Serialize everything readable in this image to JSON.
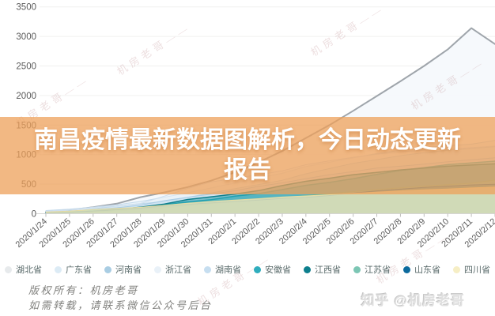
{
  "banner": {
    "title_line1": "南昌疫情最新数据图解析，今日动态更新",
    "title_line2": "报告",
    "background_color": "#ed9a5a"
  },
  "watermark_text": "机房老哥——",
  "footer": {
    "copyright_line1": "版权所有：机房老哥",
    "copyright_line2": "如需转载，请联系微信公众号后台",
    "site_watermark": "知乎 @机房老哥"
  },
  "chart_data": {
    "type": "area",
    "title": "",
    "xlabel": "",
    "ylabel": "",
    "ylim": [
      0,
      3500
    ],
    "yticks": [
      0,
      500,
      1000,
      1500,
      2000,
      2500,
      3000,
      3500
    ],
    "grid": true,
    "legend_position": "bottom",
    "x": [
      "2020/1/24",
      "2020/1/25",
      "2020/1/26",
      "2020/1/27",
      "2020/1/28",
      "2020/1/29",
      "2020/1/30",
      "2020/1/31",
      "2020/2/1",
      "2020/2/2",
      "2020/2/3",
      "2020/2/4",
      "2020/2/5",
      "2020/2/6",
      "2020/2/7",
      "2020/2/8",
      "2020/2/9",
      "2020/2/10",
      "2020/2/11",
      "2020/2/12"
    ],
    "series": [
      {
        "key": "hubei",
        "name": "湖北省",
        "dot": "#e7eaec",
        "stroke": "#9fa5ab",
        "stroke_width": 2,
        "fill": "#f5f8fc",
        "fill_opacity": 0.9,
        "values": [
          30,
          60,
          110,
          170,
          280,
          360,
          450,
          560,
          700,
          870,
          1060,
          1280,
          1500,
          1740,
          1990,
          2240,
          2500,
          2780,
          3140,
          2870
        ]
      },
      {
        "key": "guangdong",
        "name": "广东省",
        "dot": "#dcebf5",
        "stroke": "#c3d9ea",
        "stroke_width": 1,
        "fill": "#dcebf5",
        "fill_opacity": 0.45,
        "values": [
          53,
          78,
          111,
          151,
          207,
          277,
          354,
          436,
          520,
          604,
          683,
          797,
          870,
          944,
          1018,
          1075,
          1120,
          1151,
          1177,
          1241
        ]
      },
      {
        "key": "henan",
        "name": "河南省",
        "dot": "#a9cde3",
        "stroke": "#8fbcd8",
        "stroke_width": 1,
        "fill": "#a9cde3",
        "fill_opacity": 0.45,
        "values": [
          9,
          32,
          83,
          128,
          168,
          206,
          278,
          352,
          422,
          493,
          566,
          675,
          764,
          851,
          914,
          981,
          1033,
          1073,
          1105,
          1135
        ]
      },
      {
        "key": "zhejiang",
        "name": "浙江省",
        "dot": "#e9f1f8",
        "stroke": "#cfdfee",
        "stroke_width": 1,
        "fill": "#e9f1f8",
        "fill_opacity": 0.5,
        "values": [
          43,
          62,
          104,
          128,
          173,
          296,
          428,
          537,
          599,
          661,
          724,
          829,
          895,
          954,
          1006,
          1048,
          1075,
          1092,
          1117,
          1145
        ]
      },
      {
        "key": "hunan",
        "name": "湖南省",
        "dot": "#c6def0",
        "stroke": "#a8cce5",
        "stroke_width": 1,
        "fill": "#c6def0",
        "fill_opacity": 0.45,
        "values": [
          24,
          43,
          69,
          100,
          143,
          221,
          277,
          332,
          389,
          463,
          521,
          593,
          661,
          711,
          772,
          803,
          838,
          879,
          912,
          946
        ]
      },
      {
        "key": "anhui",
        "name": "安徽省",
        "dot": "#2fadbd",
        "stroke": "#2fadbd",
        "stroke_width": 1.5,
        "fill": "#49c2cf",
        "fill_opacity": 0.5,
        "values": [
          15,
          39,
          60,
          70,
          106,
          152,
          200,
          237,
          297,
          340,
          408,
          480,
          530,
          591,
          665,
          733,
          779,
          830,
          860,
          889
        ]
      },
      {
        "key": "jiangxi",
        "name": "江西省",
        "dot": "#0d7f8d",
        "stroke": "#0d7f8d",
        "stroke_width": 1.5,
        "fill": "#12919e",
        "fill_opacity": 0.45,
        "values": [
          7,
          18,
          36,
          72,
          109,
          162,
          240,
          286,
          333,
          391,
          476,
          548,
          600,
          661,
          698,
          740,
          771,
          804,
          823,
          844
        ]
      },
      {
        "key": "jiangsu",
        "name": "江苏省",
        "dot": "#7cc6b4",
        "stroke": "#5fb5a1",
        "stroke_width": 1,
        "fill": "#7cc6b4",
        "fill_opacity": 0.5,
        "values": [
          9,
          18,
          33,
          47,
          70,
          99,
          129,
          168,
          202,
          236,
          271,
          308,
          341,
          373,
          408,
          439,
          468,
          492,
          515,
          570
        ]
      },
      {
        "key": "shandong",
        "name": "山东省",
        "dot": "#0c6a9d",
        "stroke": "#0c6a9d",
        "stroke_width": 1,
        "fill": "#0c6a9d",
        "fill_opacity": 0.35,
        "values": [
          15,
          27,
          46,
          75,
          95,
          130,
          158,
          184,
          206,
          230,
          259,
          275,
          307,
          347,
          386,
          416,
          444,
          466,
          487,
          497
        ]
      },
      {
        "key": "sichuan",
        "name": "四川省",
        "dot": "#f6eec5",
        "stroke": "#e8dca2",
        "stroke_width": 1,
        "fill": "#f3e9b9",
        "fill_opacity": 0.8,
        "values": [
          28,
          44,
          69,
          90,
          108,
          142,
          177,
          207,
          231,
          254,
          282,
          301,
          321,
          344,
          364,
          386,
          405,
          417,
          436,
          451
        ]
      }
    ]
  }
}
